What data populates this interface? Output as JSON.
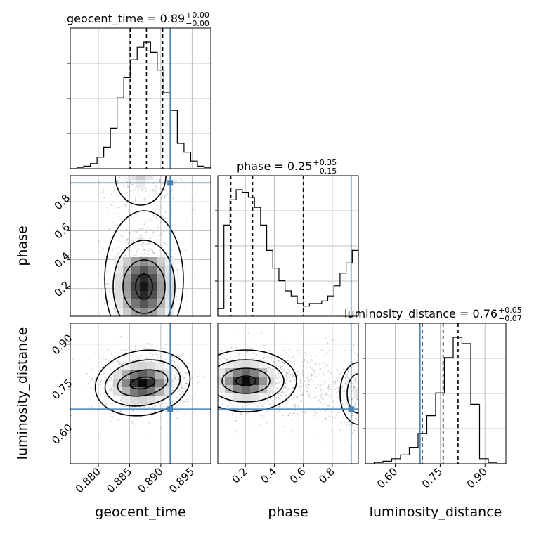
{
  "chart_data": {
    "type": "corner",
    "parameters": [
      "geocent_time",
      "phase",
      "luminosity_distance"
    ],
    "titles": [
      {
        "param": "geocent_time",
        "text": "geocent_time = 0.89",
        "sup": "+0.00",
        "sub": "−0.00"
      },
      {
        "param": "phase",
        "text": "phase = 0.25",
        "sup": "+0.35",
        "sub": "−0.15"
      },
      {
        "param": "luminosity_distance",
        "text": "luminosity_distance = 0.76",
        "sup": "+0.05",
        "sub": "−0.07"
      }
    ],
    "axis_labels": {
      "x": [
        "geocent_time",
        "phase",
        "luminosity_distance"
      ],
      "y": [
        "phase",
        "luminosity_distance"
      ]
    },
    "ranges": {
      "geocent_time": [
        0.8755,
        0.898
      ],
      "phase": [
        0.01,
        0.98
      ],
      "luminosity_distance": [
        0.5,
        0.97
      ]
    },
    "ticks": {
      "geocent_time": [
        0.88,
        0.885,
        0.89,
        0.895
      ],
      "geocent_time_labels": [
        "0.880",
        "0.885",
        "0.890",
        "0.895"
      ],
      "phase": [
        0.2,
        0.4,
        0.6,
        0.8
      ],
      "phase_labels": [
        "0.2",
        "0.4",
        "0.6",
        "0.8"
      ],
      "luminosity_distance": [
        0.6,
        0.75,
        0.9
      ],
      "luminosity_distance_labels": [
        "0.60",
        "0.75",
        "0.90"
      ]
    },
    "truth": {
      "geocent_time": 0.8915,
      "phase": 0.93,
      "luminosity_distance": 0.683
    },
    "quantiles": {
      "geocent_time": [
        0.8851,
        0.8877,
        0.8903
      ],
      "phase": [
        0.1,
        0.25,
        0.6
      ],
      "luminosity_distance": [
        0.69,
        0.76,
        0.81
      ]
    },
    "histograms": {
      "geocent_time": [
        0.0,
        0.01,
        0.02,
        0.04,
        0.09,
        0.17,
        0.32,
        0.56,
        0.72,
        0.86,
        0.96,
        1.0,
        0.92,
        0.78,
        0.6,
        0.46,
        0.2,
        0.13,
        0.06,
        0.02,
        0.01
      ],
      "phase": [
        0.06,
        0.72,
        0.92,
        1.0,
        0.98,
        0.94,
        0.86,
        0.72,
        0.52,
        0.38,
        0.28,
        0.2,
        0.16,
        0.1,
        0.08,
        0.1,
        0.1,
        0.12,
        0.16,
        0.24,
        0.34,
        0.42,
        0.52
      ],
      "luminosity_distance": [
        0.0,
        0.01,
        0.02,
        0.04,
        0.07,
        0.13,
        0.24,
        0.38,
        0.56,
        0.84,
        1.0,
        0.95,
        0.47,
        0.04,
        0.01,
        0.0
      ]
    },
    "grid": true,
    "legend": "none"
  },
  "colors": {
    "truth": "#4682b4",
    "line": "#000000",
    "grid": "#b0b0b0",
    "points": "#777777"
  }
}
